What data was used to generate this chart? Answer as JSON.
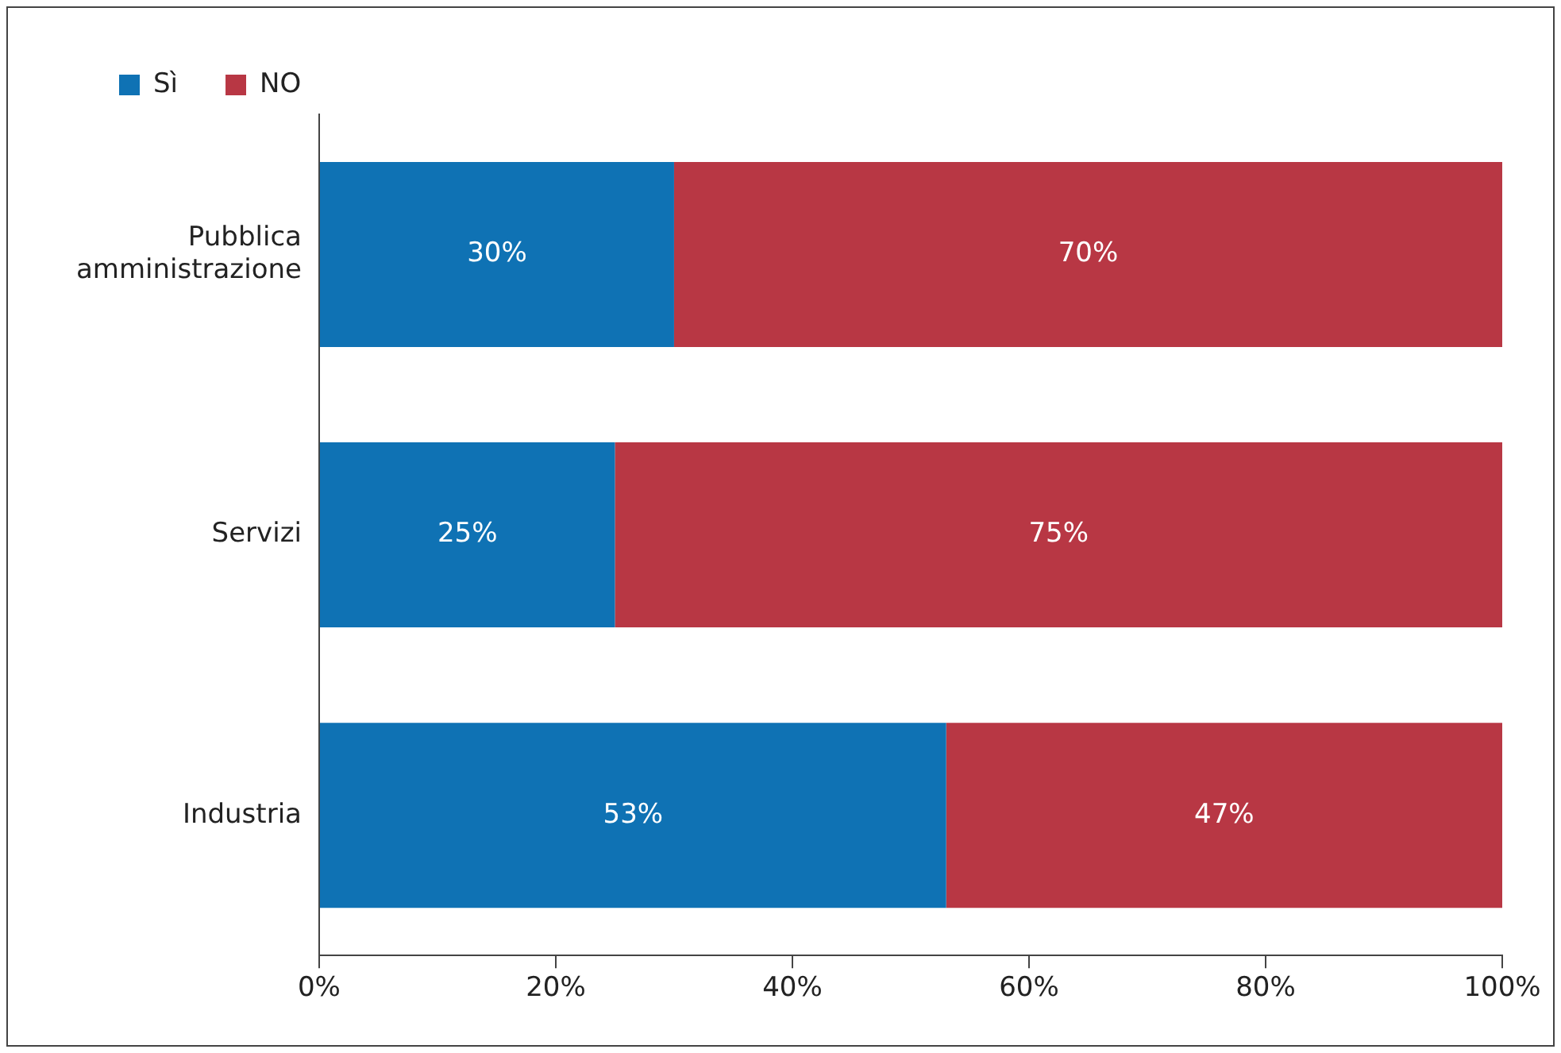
{
  "chart_data": {
    "type": "bar",
    "orientation": "horizontal",
    "stacked": true,
    "categories": [
      "Pubblica amministrazione",
      "Servizi",
      "Industria"
    ],
    "series": [
      {
        "name": "Sì",
        "color": "#0f72b4",
        "values": [
          30,
          25,
          53
        ],
        "value_labels": [
          "30%",
          "25%",
          "53%"
        ]
      },
      {
        "name": "NO",
        "color": "#b83744",
        "values": [
          70,
          75,
          47
        ],
        "value_labels": [
          "70%",
          "75%",
          "47%"
        ]
      }
    ],
    "xlim": [
      0,
      100
    ],
    "xticks": [
      {
        "value": 0,
        "label": "0%"
      },
      {
        "value": 20,
        "label": "20%"
      },
      {
        "value": 40,
        "label": "40%"
      },
      {
        "value": 60,
        "label": "60%"
      },
      {
        "value": 80,
        "label": "80%"
      },
      {
        "value": 100,
        "label": "100%"
      }
    ],
    "grid": false,
    "legend": "top left"
  }
}
